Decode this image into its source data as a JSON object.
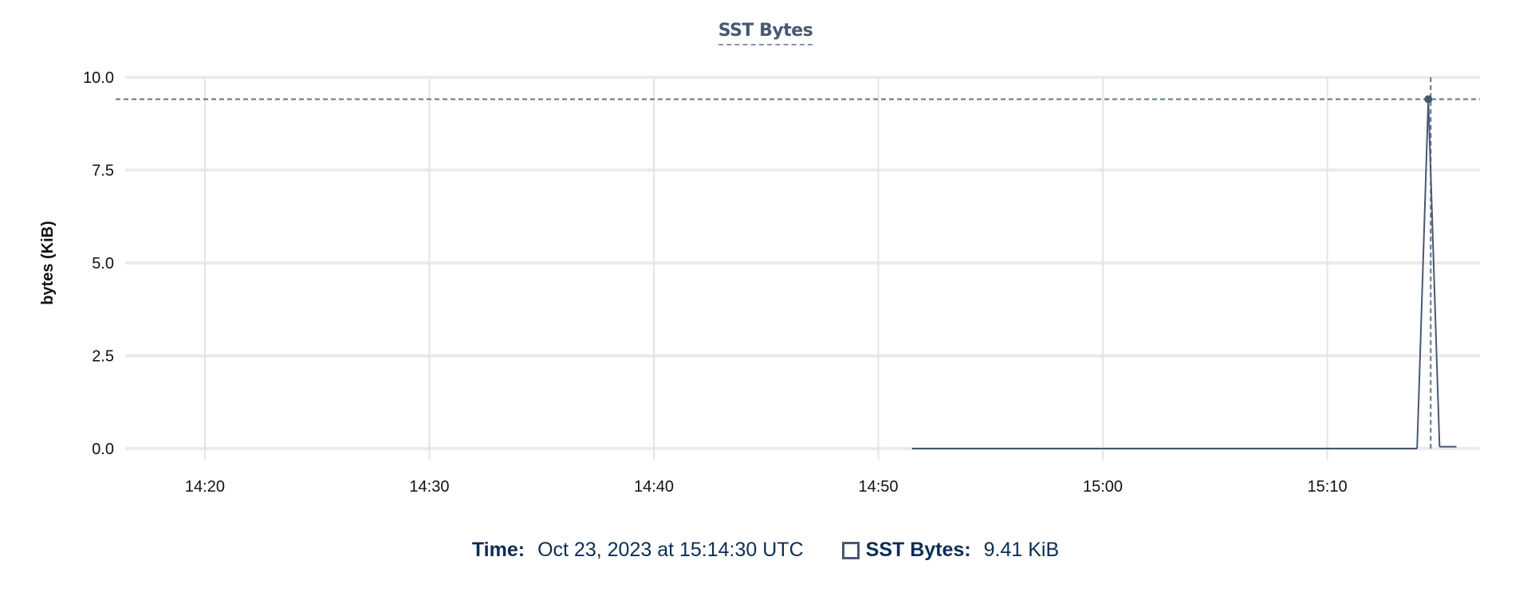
{
  "chart_data": {
    "type": "line",
    "title": "SST Bytes",
    "ylabel": "bytes (KiB)",
    "xlabel": "",
    "ylim": [
      0,
      10
    ],
    "xlim": [
      "14:16:27",
      "15:16:48"
    ],
    "grid": true,
    "yticks": [
      "0.0",
      "2.5",
      "5.0",
      "7.5",
      "10.0"
    ],
    "ytick_values": [
      0,
      2.5,
      5,
      7.5,
      10
    ],
    "xticks": [
      "14:20",
      "14:30",
      "14:40",
      "14:50",
      "15:00",
      "15:10"
    ],
    "series": [
      {
        "name": "SST Bytes",
        "color": "#475872",
        "x": [
          "14:51:30",
          "15:14:00",
          "15:14:30",
          "15:15:00",
          "15:15:45"
        ],
        "y": [
          0,
          0,
          9.41,
          0.05,
          0.05
        ]
      }
    ],
    "crosshair": {
      "x": "15:14:30",
      "y": 9.41,
      "color": "#5d7685"
    }
  },
  "legend": {
    "time_label": "Time:",
    "time_value": "Oct 23, 2023 at 15:14:30 UTC",
    "series_label": "SST Bytes:",
    "series_value": "9.41 KiB"
  }
}
